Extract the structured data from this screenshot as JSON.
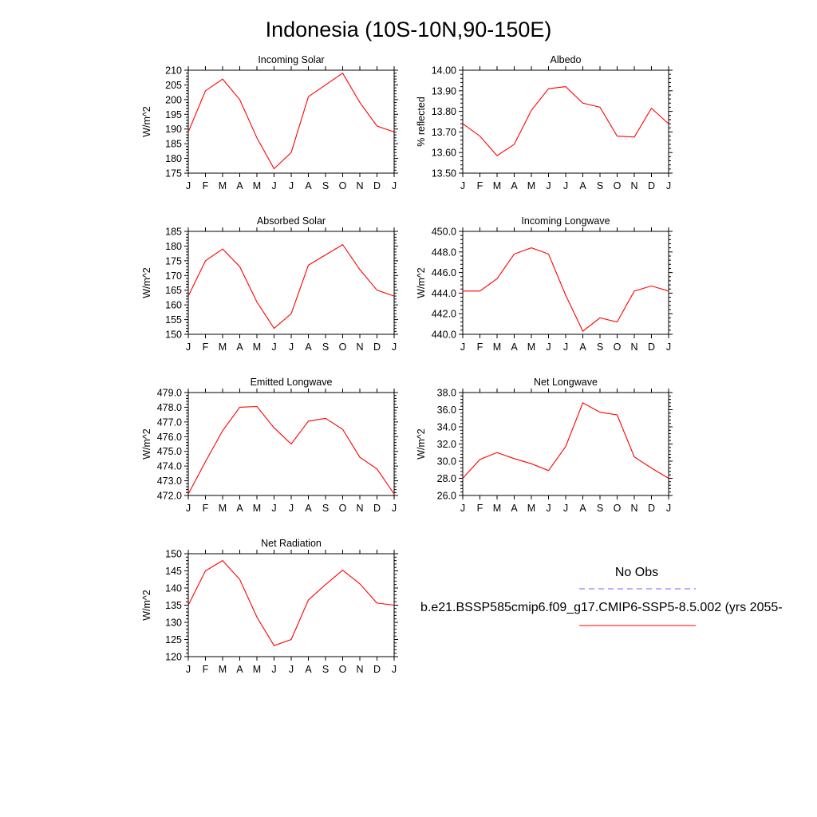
{
  "title": "Indonesia (10S-10N,90-150E)",
  "colors": {
    "model_line": "#ff0000",
    "obs_line": "#6666ff",
    "axis": "#000000"
  },
  "legend": {
    "obs_label": "No Obs",
    "model_label": "b.e21.BSSP585cmip6.f09_g17.CMIP6-SSP5-8.5.002 (yrs 2055-"
  },
  "chart_data": [
    {
      "type": "line",
      "title": "Incoming Solar",
      "ylabel": "W/m^2",
      "categories": [
        "J",
        "F",
        "M",
        "A",
        "M",
        "J",
        "J",
        "A",
        "S",
        "O",
        "N",
        "D",
        "J"
      ],
      "ylim": [
        175,
        210
      ],
      "yticks": [
        "175",
        "180",
        "185",
        "190",
        "195",
        "200",
        "205",
        "210"
      ],
      "series": [
        {
          "values": [
            189,
            203,
            207,
            200,
            187,
            176.5,
            182,
            201,
            205,
            209,
            199,
            191,
            189
          ]
        }
      ]
    },
    {
      "type": "line",
      "title": "Albedo",
      "ylabel": "% reflected",
      "categories": [
        "J",
        "F",
        "M",
        "A",
        "M",
        "J",
        "J",
        "A",
        "S",
        "O",
        "N",
        "D",
        "J"
      ],
      "ylim": [
        13.5,
        14.0
      ],
      "yticks": [
        "13.50",
        "13.60",
        "13.70",
        "13.80",
        "13.90",
        "14.00"
      ],
      "series": [
        {
          "values": [
            13.74,
            13.68,
            13.585,
            13.64,
            13.805,
            13.91,
            13.92,
            13.84,
            13.82,
            13.68,
            13.675,
            13.815,
            13.74
          ]
        }
      ]
    },
    {
      "type": "line",
      "title": "Absorbed Solar",
      "ylabel": "W/m^2",
      "categories": [
        "J",
        "F",
        "M",
        "A",
        "M",
        "J",
        "J",
        "A",
        "S",
        "O",
        "N",
        "D",
        "J"
      ],
      "ylim": [
        150,
        185
      ],
      "yticks": [
        "150",
        "155",
        "160",
        "165",
        "170",
        "175",
        "180",
        "185"
      ],
      "series": [
        {
          "values": [
            163,
            175,
            179,
            173,
            161,
            152,
            157,
            173.5,
            177,
            180.5,
            172,
            165,
            163
          ]
        }
      ]
    },
    {
      "type": "line",
      "title": "Incoming Longwave",
      "ylabel": "W/m^2",
      "categories": [
        "J",
        "F",
        "M",
        "A",
        "M",
        "J",
        "J",
        "A",
        "S",
        "O",
        "N",
        "D",
        "J"
      ],
      "ylim": [
        440,
        450
      ],
      "yticks": [
        "440.0",
        "442.0",
        "444.0",
        "446.0",
        "448.0",
        "450.0"
      ],
      "series": [
        {
          "values": [
            444.2,
            444.2,
            445.4,
            447.8,
            448.4,
            447.8,
            443.8,
            440.3,
            441.6,
            441.2,
            444.2,
            444.7,
            444.2
          ]
        }
      ]
    },
    {
      "type": "line",
      "title": "Emitted Longwave",
      "ylabel": "W/m^2",
      "categories": [
        "J",
        "F",
        "M",
        "A",
        "M",
        "J",
        "J",
        "A",
        "S",
        "O",
        "N",
        "D",
        "J"
      ],
      "ylim": [
        472,
        479
      ],
      "yticks": [
        "472.0",
        "473.0",
        "474.0",
        "475.0",
        "476.0",
        "477.0",
        "478.0",
        "479.0"
      ],
      "series": [
        {
          "values": [
            472.1,
            474.3,
            476.4,
            478.0,
            478.05,
            476.6,
            475.5,
            477.05,
            477.25,
            476.5,
            474.6,
            473.8,
            472.1
          ]
        }
      ]
    },
    {
      "type": "line",
      "title": "Net Longwave",
      "ylabel": "W/m^2",
      "categories": [
        "J",
        "F",
        "M",
        "A",
        "M",
        "J",
        "J",
        "A",
        "S",
        "O",
        "N",
        "D",
        "J"
      ],
      "ylim": [
        26,
        38
      ],
      "yticks": [
        "26.0",
        "28.0",
        "30.0",
        "32.0",
        "34.0",
        "36.0",
        "38.0"
      ],
      "series": [
        {
          "values": [
            28.0,
            30.2,
            31.0,
            30.3,
            29.7,
            28.9,
            31.7,
            36.8,
            35.7,
            35.4,
            30.5,
            29.2,
            28.0
          ]
        }
      ]
    },
    {
      "type": "line",
      "title": "Net Radiation",
      "ylabel": "W/m^2",
      "categories": [
        "J",
        "F",
        "M",
        "A",
        "M",
        "J",
        "J",
        "A",
        "S",
        "O",
        "N",
        "D",
        "J"
      ],
      "ylim": [
        120,
        150
      ],
      "yticks": [
        "120",
        "125",
        "130",
        "135",
        "140",
        "145",
        "150"
      ],
      "series": [
        {
          "values": [
            135,
            145,
            148,
            142.5,
            131.5,
            123.2,
            125,
            136.5,
            141,
            145.2,
            141.2,
            135.6,
            135
          ]
        }
      ]
    }
  ]
}
